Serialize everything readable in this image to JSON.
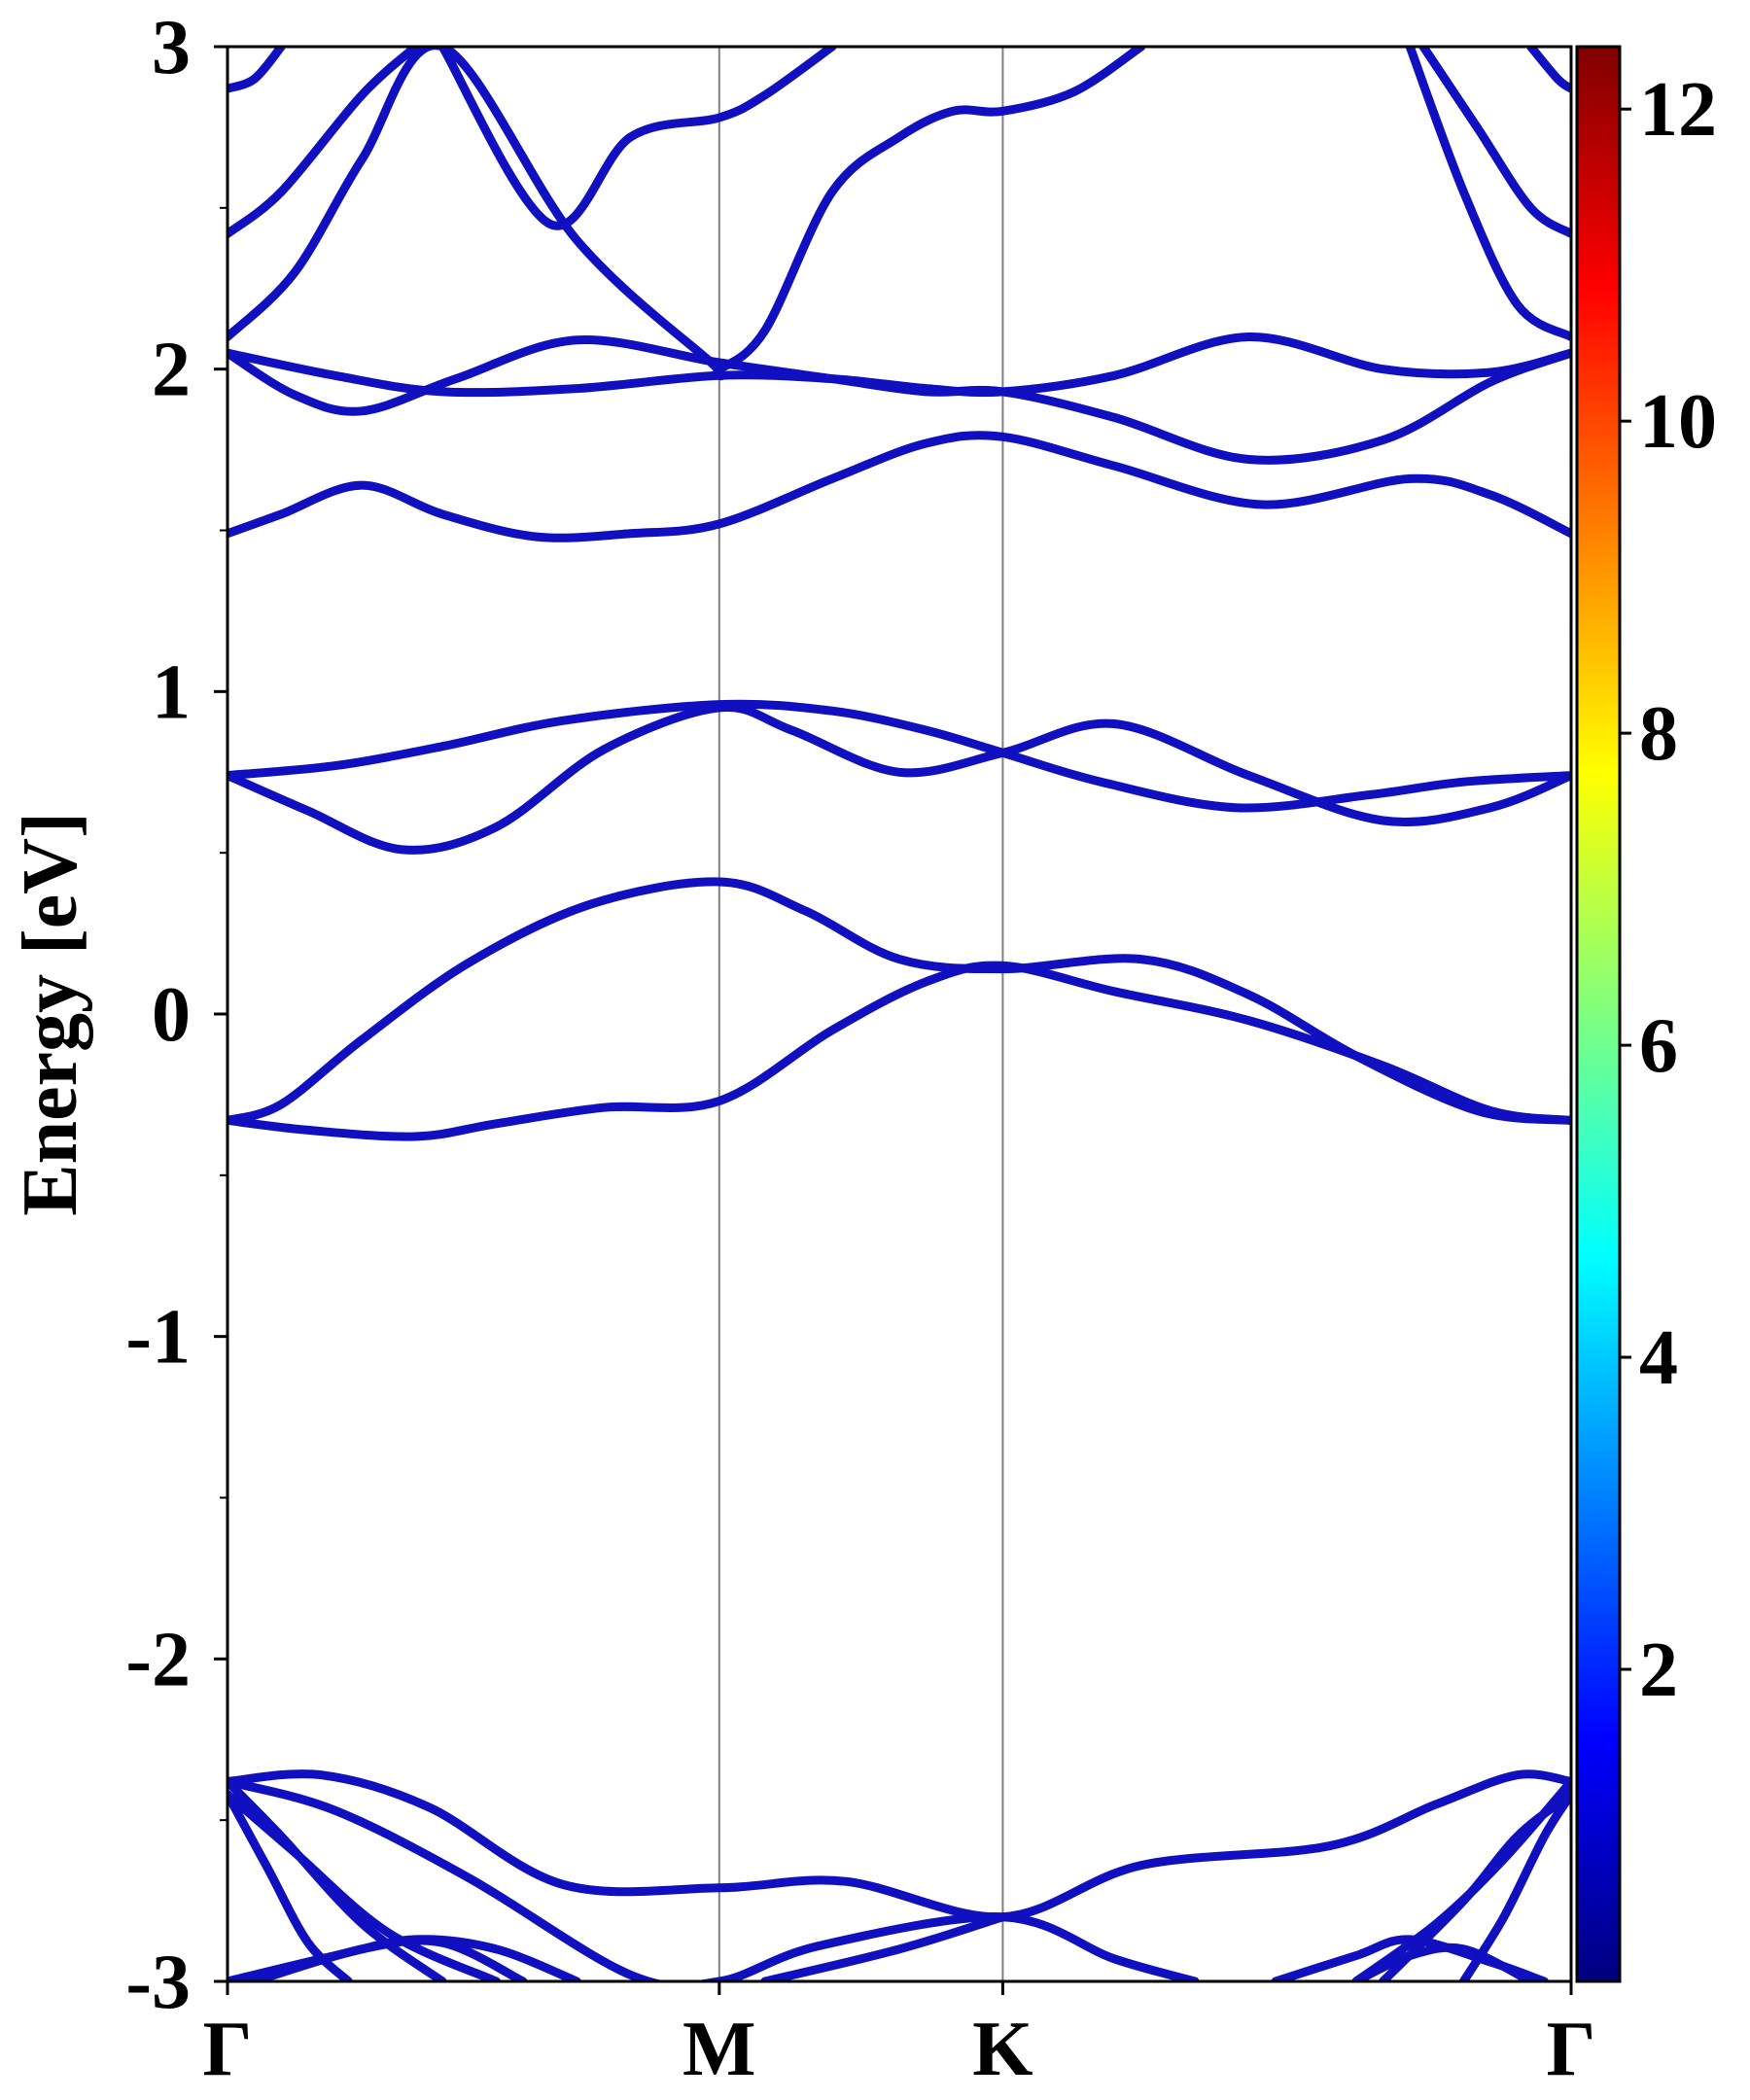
{
  "chart_data": {
    "type": "line",
    "title": "",
    "xlabel": "",
    "ylabel": "Energy [eV]",
    "ylim": [
      -3,
      3
    ],
    "xlim": [
      0,
      1
    ],
    "grid": false,
    "high_symmetry_points": [
      {
        "label": "Γ",
        "x": 0.0
      },
      {
        "label": "M",
        "x": 0.366
      },
      {
        "label": "K",
        "x": 0.577
      },
      {
        "label": "Γ",
        "x": 1.0
      }
    ],
    "y_ticks": [
      {
        "value": 3,
        "label": "3"
      },
      {
        "value": 2,
        "label": "2"
      },
      {
        "value": 1,
        "label": "1"
      },
      {
        "value": 0,
        "label": "0"
      },
      {
        "value": -1,
        "label": "-1"
      },
      {
        "value": -2,
        "label": "-2"
      },
      {
        "value": -3,
        "label": "-3"
      }
    ],
    "colorbar": {
      "colormap": "jet",
      "range": [
        0,
        12.4
      ],
      "ticks": [
        {
          "value": 2,
          "label": "2"
        },
        {
          "value": 4,
          "label": "4"
        },
        {
          "value": 6,
          "label": "6"
        },
        {
          "value": 8,
          "label": "8"
        },
        {
          "value": 10,
          "label": "10"
        },
        {
          "value": 12,
          "label": "12"
        }
      ]
    },
    "band_color": "#1010c0",
    "series": [
      {
        "x": [
          0,
          0.06,
          0.14,
          0.2,
          0.28,
          0.366,
          0.45,
          0.52,
          0.577,
          0.66,
          0.76,
          0.86,
          0.94,
          1.0
        ],
        "y": [
          -0.33,
          -0.36,
          -0.38,
          -0.34,
          -0.29,
          -0.27,
          -0.05,
          0.1,
          0.15,
          0.07,
          -0.02,
          -0.16,
          -0.3,
          -0.33
        ]
      },
      {
        "x": [
          0,
          0.04,
          0.1,
          0.18,
          0.27,
          0.366,
          0.43,
          0.5,
          0.577,
          0.68,
          0.76,
          0.84,
          0.93,
          1.0
        ],
        "y": [
          -0.33,
          -0.28,
          -0.08,
          0.16,
          0.34,
          0.41,
          0.32,
          0.17,
          0.14,
          0.17,
          0.06,
          -0.13,
          -0.3,
          -0.33
        ]
      },
      {
        "x": [
          0,
          0.06,
          0.13,
          0.2,
          0.28,
          0.366,
          0.42,
          0.5,
          0.577,
          0.66,
          0.76,
          0.86,
          0.94,
          1.0
        ],
        "y": [
          0.74,
          0.63,
          0.51,
          0.58,
          0.82,
          0.95,
          0.88,
          0.75,
          0.81,
          0.9,
          0.74,
          0.6,
          0.64,
          0.74
        ]
      },
      {
        "x": [
          0,
          0.08,
          0.16,
          0.25,
          0.366,
          0.45,
          0.52,
          0.577,
          0.65,
          0.75,
          0.85,
          0.92,
          1.0
        ],
        "y": [
          0.74,
          0.77,
          0.83,
          0.91,
          0.96,
          0.94,
          0.88,
          0.81,
          0.72,
          0.64,
          0.68,
          0.72,
          0.74
        ]
      },
      {
        "x": [
          0,
          0.04,
          0.1,
          0.16,
          0.23,
          0.3,
          0.366,
          0.45,
          0.52,
          0.577,
          0.66,
          0.77,
          0.88,
          0.94,
          1.0
        ],
        "y": [
          1.49,
          1.55,
          1.64,
          1.55,
          1.48,
          1.49,
          1.52,
          1.66,
          1.77,
          1.79,
          1.7,
          1.58,
          1.66,
          1.61,
          1.49
        ]
      },
      {
        "x": [
          0,
          0.05,
          0.1,
          0.17,
          0.26,
          0.366,
          0.45,
          0.52,
          0.577,
          0.66,
          0.76,
          0.86,
          0.94,
          1.0
        ],
        "y": [
          2.05,
          1.92,
          1.87,
          1.97,
          2.09,
          2.02,
          1.97,
          1.93,
          1.93,
          1.85,
          1.72,
          1.78,
          1.96,
          2.05
        ]
      },
      {
        "x": [
          0,
          0.08,
          0.16,
          0.26,
          0.366,
          0.45,
          0.52,
          0.577,
          0.66,
          0.76,
          0.86,
          0.94,
          1.0
        ],
        "y": [
          2.05,
          1.98,
          1.93,
          1.94,
          1.98,
          1.97,
          1.94,
          1.93,
          1.98,
          2.1,
          2.0,
          1.99,
          2.05
        ]
      },
      {
        "x": [
          0,
          0.05,
          0.1,
          0.16,
          0.26,
          0.36,
          0.366,
          0.4,
          0.45,
          0.5,
          0.54,
          0.577,
          0.63,
          0.68
        ],
        "y": [
          2.1,
          2.3,
          2.65,
          3.0,
          2.4,
          2.02,
          2.0,
          2.12,
          2.55,
          2.72,
          2.8,
          2.8,
          2.86,
          3.0
        ]
      },
      {
        "x": [
          0.16,
          0.24,
          0.3,
          0.366,
          0.4,
          0.45
        ],
        "y": [
          3.0,
          2.45,
          2.72,
          2.78,
          2.85,
          3.0
        ]
      },
      {
        "x": [
          0,
          0.04,
          0.1,
          0.14
        ],
        "y": [
          2.42,
          2.55,
          2.85,
          3.0
        ]
      },
      {
        "x": [
          0,
          0.02,
          0.04
        ],
        "y": [
          2.87,
          2.9,
          3.0
        ]
      },
      {
        "x": [
          0.88,
          0.92,
          0.96,
          1.0
        ],
        "y": [
          3.0,
          2.55,
          2.2,
          2.1
        ]
      },
      {
        "x": [
          0.89,
          0.93,
          0.97,
          1.0
        ],
        "y": [
          3.0,
          2.75,
          2.5,
          2.42
        ]
      },
      {
        "x": [
          0.97,
          0.99,
          1.0
        ],
        "y": [
          3.0,
          2.9,
          2.87
        ]
      },
      {
        "x": [
          0,
          0.07,
          0.15,
          0.25,
          0.366,
          0.46,
          0.577,
          0.68,
          0.82,
          0.9,
          0.96,
          1.0
        ],
        "y": [
          -2.38,
          -2.36,
          -2.46,
          -2.7,
          -2.71,
          -2.69,
          -2.8,
          -2.64,
          -2.58,
          -2.45,
          -2.36,
          -2.38
        ]
      },
      {
        "x": [
          0,
          0.08,
          0.18,
          0.3,
          0.366,
          0.44,
          0.577,
          0.66,
          0.72
        ],
        "y": [
          -2.38,
          -2.47,
          -2.68,
          -2.98,
          -3.0,
          -2.89,
          -2.8,
          -2.93,
          -3.0
        ]
      },
      {
        "x": [
          0.4,
          0.5,
          0.577
        ],
        "y": [
          -3.0,
          -2.9,
          -2.8
        ]
      },
      {
        "x": [
          0,
          0.05,
          0.12,
          0.2
        ],
        "y": [
          -2.42,
          -2.6,
          -2.85,
          -3.0
        ]
      },
      {
        "x": [
          0,
          0.04,
          0.1,
          0.16
        ],
        "y": [
          -2.38,
          -2.55,
          -2.82,
          -3.0
        ]
      },
      {
        "x": [
          0,
          0.03,
          0.06,
          0.09
        ],
        "y": [
          -2.42,
          -2.65,
          -2.88,
          -3.0
        ]
      },
      {
        "x": [
          0,
          0.08,
          0.14,
          0.2,
          0.26
        ],
        "y": [
          -3.0,
          -2.92,
          -2.87,
          -2.9,
          -3.0
        ]
      },
      {
        "x": [
          0.02,
          0.1,
          0.16,
          0.22
        ],
        "y": [
          -3.0,
          -2.9,
          -2.88,
          -3.0
        ]
      },
      {
        "x": [
          0.86,
          0.92,
          0.96,
          1.0
        ],
        "y": [
          -3.0,
          -2.75,
          -2.55,
          -2.42
        ]
      },
      {
        "x": [
          0.84,
          0.9,
          0.95,
          1.0
        ],
        "y": [
          -3.0,
          -2.82,
          -2.62,
          -2.38
        ]
      },
      {
        "x": [
          0.92,
          0.95,
          0.98,
          1.0
        ],
        "y": [
          -3.0,
          -2.8,
          -2.55,
          -2.42
        ]
      },
      {
        "x": [
          0.78,
          0.84,
          0.88,
          0.94,
          0.98
        ],
        "y": [
          -3.0,
          -2.92,
          -2.87,
          -2.94,
          -3.0
        ]
      },
      {
        "x": [
          0.84,
          0.88,
          0.92,
          0.97
        ],
        "y": [
          -3.0,
          -2.92,
          -2.9,
          -3.0
        ]
      }
    ]
  }
}
